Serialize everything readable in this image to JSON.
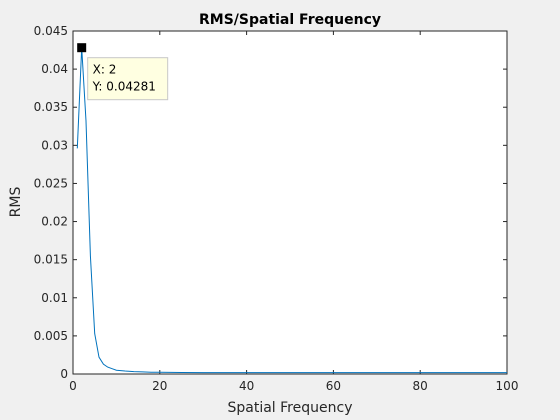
{
  "chart_data": {
    "type": "line",
    "title": "RMS/Spatial Frequency",
    "xlabel": "Spatial Frequency",
    "ylabel": "RMS",
    "xlim": [
      0,
      100
    ],
    "ylim": [
      0,
      0.045
    ],
    "xticks": [
      0,
      20,
      40,
      60,
      80,
      100
    ],
    "yticks": [
      0,
      0.005,
      0.01,
      0.015,
      0.02,
      0.025,
      0.03,
      0.035,
      0.04,
      0.045
    ],
    "xtick_labels": [
      "0",
      "20",
      "40",
      "60",
      "80",
      "100"
    ],
    "ytick_labels": [
      "0",
      "0.005",
      "0.01",
      "0.015",
      "0.02",
      "0.025",
      "0.03",
      "0.035",
      "0.04",
      "0.045"
    ],
    "grid": false,
    "series": [
      {
        "color": "#0072bd",
        "x": [
          1,
          2,
          3,
          4,
          5,
          6,
          7,
          8,
          9,
          10,
          12,
          14,
          16,
          18,
          20,
          25,
          30,
          40,
          50,
          60,
          70,
          80,
          90,
          100
        ],
        "y": [
          0.0296,
          0.04281,
          0.0332,
          0.0155,
          0.0053,
          0.0022,
          0.0013,
          0.0009,
          0.0007,
          0.0005,
          0.0004,
          0.00032,
          0.00027,
          0.00024,
          0.00022,
          0.0002,
          0.00019,
          0.00018,
          0.00018,
          0.00018,
          0.00018,
          0.00018,
          0.00018,
          0.00018
        ]
      }
    ],
    "datatip": {
      "x": 2,
      "y": 0.04281,
      "x_text": "X: 2",
      "y_text": "Y: 0.04281"
    }
  },
  "colors": {
    "figure_bg": "#f0f0f0",
    "axes_bg": "#ffffff",
    "line": "#0072bd",
    "datatip_bg": "#ffffe1"
  }
}
